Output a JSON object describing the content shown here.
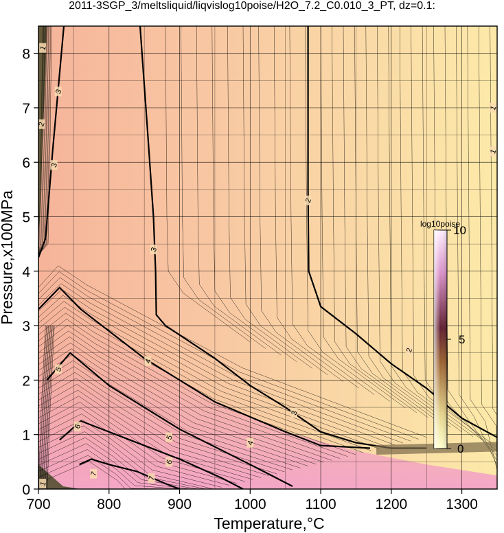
{
  "title": "2011-3SGP_3/meltsliquid/liqvislog10poise/H2O_7.2_C0.010_3_PT, dz=0.1:",
  "colors": {
    "background_low_T_high_P": "#f6b79a",
    "background_high_T": "#fbe7a6",
    "background_low_P_cool": "#f3a6c4",
    "background_lowest": "#f6c8e8",
    "grid": "#000000",
    "contour": "#000000"
  },
  "chart_data": {
    "type": "heatmap",
    "title": "2011-3SGP_3/meltsliquid/liqvislog10poise/H2O_7.2_C0.010_3_PT, dz=0.1:",
    "xlabel": "Temperature,°C",
    "ylabel": "Pressure,x100MPa",
    "xlim": [
      700,
      1350
    ],
    "ylim": [
      0,
      8.5
    ],
    "x_ticks": [
      700,
      800,
      900,
      1000,
      1100,
      1200,
      1300
    ],
    "x_tick_labels": [
      "700",
      "800",
      "900",
      "1000",
      "1100",
      "1200",
      "1300"
    ],
    "y_ticks": [
      0,
      1,
      2,
      3,
      4,
      5,
      6,
      7,
      8
    ],
    "y_tick_labels": [
      "0",
      "1",
      "2",
      "3",
      "4",
      "5",
      "6",
      "7",
      "8"
    ],
    "grid": true,
    "contour_interval": 0.1,
    "major_contours": [
      {
        "level": 2,
        "label": "2",
        "points": [
          [
            1082,
            8.5
          ],
          [
            1082,
            5.5
          ],
          [
            1083,
            4.0
          ],
          [
            1100,
            3.35
          ],
          [
            1150,
            2.85
          ],
          [
            1200,
            2.3
          ],
          [
            1250,
            1.85
          ],
          [
            1300,
            1.3
          ],
          [
            1350,
            0.95
          ]
        ]
      },
      {
        "level": 3,
        "label": "3",
        "points": [
          [
            844,
            8.5
          ],
          [
            855,
            6.5
          ],
          [
            863,
            5.0
          ],
          [
            866,
            4.0
          ],
          [
            867,
            3.2
          ],
          [
            880,
            3.0
          ],
          [
            950,
            2.4
          ],
          [
            1000,
            1.9
          ],
          [
            1050,
            1.5
          ],
          [
            1100,
            1.05
          ],
          [
            1150,
            0.85
          ],
          [
            1200,
            0.75
          ],
          [
            1250,
            0.75
          ]
        ]
      },
      {
        "level": 3,
        "label": "3",
        "points": [
          [
            736,
            8.5
          ],
          [
            720,
            6.2
          ],
          [
            710,
            4.6
          ],
          [
            700,
            4.25
          ]
        ]
      },
      {
        "level": 4,
        "label": "4",
        "points": [
          [
            700,
            3.3
          ],
          [
            730,
            3.7
          ],
          [
            760,
            3.3
          ],
          [
            850,
            2.4
          ],
          [
            950,
            1.6
          ],
          [
            1050,
            1.05
          ],
          [
            1100,
            0.8
          ],
          [
            1170,
            0.75
          ]
        ]
      },
      {
        "level": 5,
        "label": "5",
        "points": [
          [
            712,
            2.0
          ],
          [
            745,
            2.5
          ],
          [
            800,
            1.9
          ],
          [
            900,
            1.1
          ],
          [
            1000,
            0.45
          ],
          [
            1060,
            0.05
          ]
        ]
      },
      {
        "level": 6,
        "label": "6",
        "points": [
          [
            730,
            0.9
          ],
          [
            760,
            1.25
          ],
          [
            820,
            0.95
          ],
          [
            900,
            0.55
          ],
          [
            960,
            0.2
          ],
          [
            990,
            0.0
          ]
        ]
      },
      {
        "level": 7,
        "label": "7",
        "points": [
          [
            758,
            0.45
          ],
          [
            775,
            0.55
          ],
          [
            800,
            0.45
          ],
          [
            840,
            0.32
          ],
          [
            880,
            0.1
          ],
          [
            900,
            0.0
          ]
        ]
      }
    ],
    "contour_labels": [
      {
        "text": "2",
        "x": 1082,
        "y": 5.3
      },
      {
        "text": "2",
        "x": 1225,
        "y": 2.55
      },
      {
        "text": "3",
        "x": 863,
        "y": 4.4
      },
      {
        "text": "3",
        "x": 1062,
        "y": 1.4
      },
      {
        "text": "3",
        "x": 728,
        "y": 7.3
      },
      {
        "text": "3",
        "x": 722,
        "y": 5.95
      },
      {
        "text": "4",
        "x": 855,
        "y": 2.35
      },
      {
        "text": "4",
        "x": 1000,
        "y": 0.85
      },
      {
        "text": "5",
        "x": 728,
        "y": 2.2
      },
      {
        "text": "5",
        "x": 885,
        "y": 0.95
      },
      {
        "text": "6",
        "x": 755,
        "y": 1.15
      },
      {
        "text": "6",
        "x": 885,
        "y": 0.5
      },
      {
        "text": "7",
        "x": 778,
        "y": 0.28
      },
      {
        "text": "7",
        "x": 860,
        "y": 0.2
      },
      {
        "text": "1",
        "x": 1344,
        "y": 7.0
      },
      {
        "text": "1",
        "x": 1344,
        "y": 6.2
      },
      {
        "text": "1",
        "x": 706,
        "y": 8.1
      },
      {
        "text": "2",
        "x": 704,
        "y": 6.7
      },
      {
        "text": "1",
        "x": 706,
        "y": 0.1
      }
    ],
    "colorbar": {
      "label": "log10poise",
      "min": 0,
      "max": 10,
      "tick_labels": [
        "10",
        "5",
        "0"
      ],
      "colors": [
        "#ffffd8",
        "#d8c080",
        "#804020",
        "#702040",
        "#e8a0d8",
        "#fff0ff"
      ]
    }
  }
}
